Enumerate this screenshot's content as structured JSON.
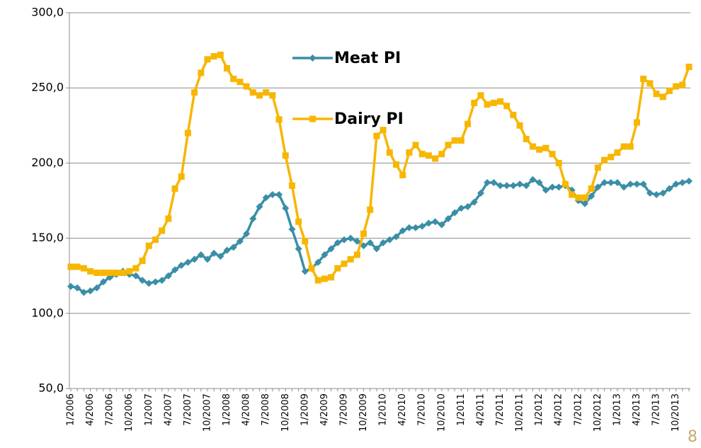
{
  "chart_data": {
    "type": "line",
    "categories": [
      "1/2006",
      null,
      null,
      "4/2006",
      null,
      null,
      "7/2006",
      null,
      null,
      "10/2006",
      null,
      null,
      "1/2007",
      null,
      null,
      "4/2007",
      null,
      null,
      "7/2007",
      null,
      null,
      "10/2007",
      null,
      null,
      "1/2008",
      null,
      null,
      "4/2008",
      null,
      null,
      "7/2008",
      null,
      null,
      "10/2008",
      null,
      null,
      "1/2009",
      null,
      null,
      "4/2009",
      null,
      null,
      "7/2009",
      null,
      null,
      "10/2009",
      null,
      null,
      "1/2010",
      null,
      null,
      "4/2010",
      null,
      null,
      "7/2010",
      null,
      null,
      "10/2010",
      null,
      null,
      "1/2011",
      null,
      null,
      "4/2011",
      null,
      null,
      "7/2011",
      null,
      null,
      "10/2011",
      null,
      null,
      "1/2012",
      null,
      null,
      "4/2012",
      null,
      null,
      "7/2012",
      null,
      null,
      "10/2012",
      null,
      null,
      "1/2013",
      null,
      null,
      "4/2013",
      null,
      null,
      "7/2013",
      null,
      null,
      "10/2013",
      null,
      null
    ],
    "series": [
      {
        "name": "Meat PI",
        "color": "#3a8ea6",
        "marker": "diamond",
        "values": [
          118,
          117,
          114,
          115,
          117,
          121,
          124,
          126,
          128,
          126,
          125,
          122,
          120,
          121,
          122,
          125,
          129,
          132,
          134,
          136,
          139,
          136,
          140,
          138,
          142,
          144,
          148,
          153,
          163,
          171,
          177,
          179,
          179,
          170,
          156,
          143,
          128,
          130,
          134,
          139,
          143,
          147,
          149,
          150,
          148,
          145,
          147,
          143,
          147,
          149,
          151,
          155,
          157,
          157,
          158,
          160,
          161,
          159,
          163,
          167,
          170,
          171,
          174,
          180,
          187,
          187,
          185,
          185,
          185,
          186,
          185,
          189,
          187,
          182,
          184,
          184,
          185,
          182,
          175,
          173,
          178,
          184,
          187,
          187,
          187,
          184,
          186,
          186,
          186,
          180,
          179,
          180,
          183,
          186,
          187,
          188
        ]
      },
      {
        "name": "Dairy PI",
        "color": "#f7b600",
        "marker": "square",
        "values": [
          131,
          131,
          130,
          128,
          127,
          127,
          127,
          127,
          127,
          128,
          130,
          135,
          145,
          149,
          155,
          163,
          183,
          191,
          220,
          247,
          260,
          269,
          271,
          272,
          263,
          256,
          254,
          251,
          247,
          245,
          247,
          245,
          229,
          205,
          185,
          161,
          148,
          130,
          122,
          123,
          124,
          130,
          133,
          136,
          139,
          153,
          169,
          218,
          222,
          207,
          199,
          192,
          207,
          212,
          206,
          205,
          203,
          206,
          212,
          215,
          215,
          226,
          240,
          245,
          239,
          240,
          241,
          238,
          232,
          225,
          216,
          211,
          209,
          210,
          206,
          200,
          186,
          179,
          177,
          177,
          183,
          197,
          202,
          204,
          207,
          211,
          211,
          227,
          256,
          253,
          246,
          244,
          248,
          251,
          252,
          264
        ]
      }
    ],
    "ylim": [
      50,
      300
    ],
    "yticks": [
      {
        "value": 50,
        "label": "50,0"
      },
      {
        "value": 100,
        "label": "100,0"
      },
      {
        "value": 150,
        "label": "150,0"
      },
      {
        "value": 200,
        "label": "200,0"
      },
      {
        "value": 250,
        "label": "250,0"
      },
      {
        "value": 300,
        "label": "300,0"
      }
    ],
    "grid": true,
    "legend": "top"
  },
  "slide_number": "8"
}
